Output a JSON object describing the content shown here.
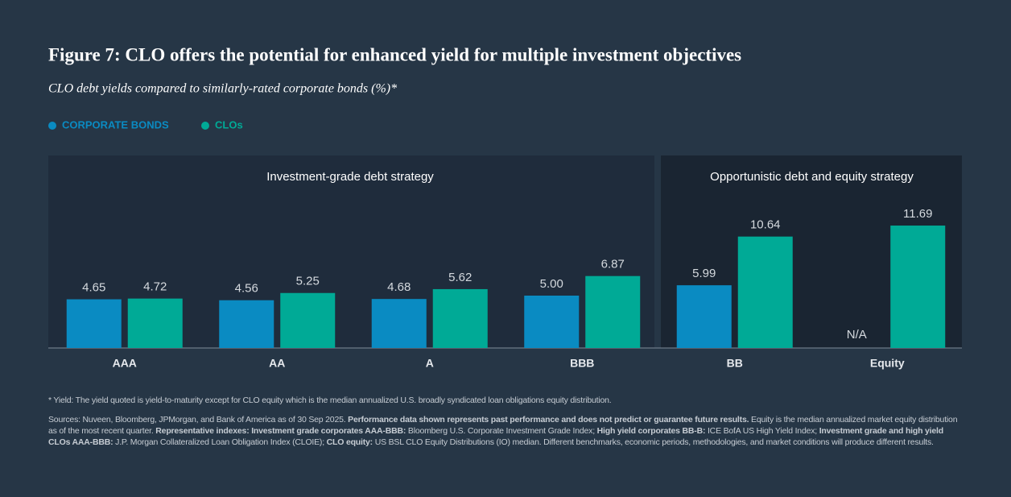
{
  "chart_data": {
    "type": "bar",
    "title": "Figure 7: CLO offers the potential for enhanced yield for multiple investment objectives",
    "subtitle": "CLO debt yields compared to similarly-rated corporate bonds (%)*",
    "panels": [
      "Investment-grade debt strategy",
      "Opportunistic debt and equity strategy"
    ],
    "categories": [
      "AAA",
      "AA",
      "A",
      "BBB",
      "BB",
      "Equity"
    ],
    "series": [
      {
        "name": "CORPORATE BONDS",
        "color": "#0a8bc2",
        "values": [
          4.65,
          4.56,
          4.68,
          5.0,
          5.99,
          null
        ],
        "value_labels": [
          "4.65",
          "4.56",
          "4.68",
          "5.00",
          "5.99",
          "N/A"
        ]
      },
      {
        "name": "CLOs",
        "color": "#00aa96",
        "values": [
          4.72,
          5.25,
          5.62,
          6.87,
          10.64,
          11.69
        ]
      }
    ],
    "ylim": [
      0,
      13
    ],
    "footnote": "* Yield: The yield quoted is yield-to-maturity except for CLO equity which is the median annualized U.S. broadly syndicated loan obligations equity distribution.",
    "sources": [
      {
        "text": "Sources: Nuveen, Bloomberg, JPMorgan, and Bank of America as of 30 Sep 2025. ",
        "bold": false
      },
      {
        "text": "Performance data shown represents past performance and does not predict or guarantee future results.",
        "bold": true
      },
      {
        "text": " Equity is the median annualized market equity distribution as of the most recent quarter. ",
        "bold": false
      },
      {
        "text": "Representative indexes: Investment grade corporates AAA-BBB:",
        "bold": true
      },
      {
        "text": " Bloomberg U.S. Corporate Investment Grade Index; ",
        "bold": false
      },
      {
        "text": "High yield corporates BB-B:",
        "bold": true
      },
      {
        "text": " ICE BofA US High Yield Index; ",
        "bold": false
      },
      {
        "text": "Investment grade and high yield CLOs AAA-BBB:",
        "bold": true
      },
      {
        "text": " J.P. Morgan Collateralized Loan Obligation Index (CLOIE); ",
        "bold": false
      },
      {
        "text": "CLO equity:",
        "bold": true
      },
      {
        "text": " US BSL CLO Equity Distributions (IO) median. Different benchmarks, economic periods, methodologies, and market conditions will produce different results.",
        "bold": false
      }
    ]
  }
}
